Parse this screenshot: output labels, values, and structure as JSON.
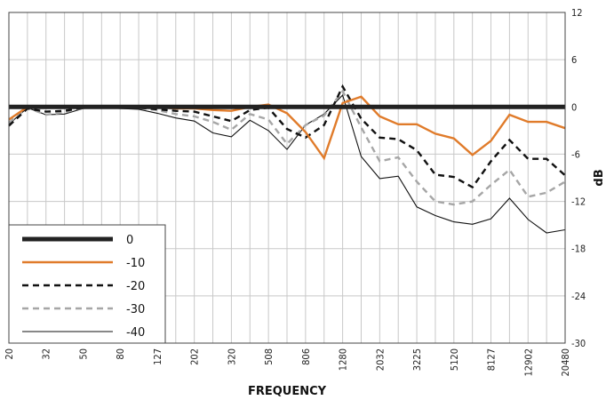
{
  "chart_data": {
    "type": "line",
    "xlabel": "FREQUENCY",
    "ylabel": "dB",
    "x_tick_labels": [
      "20",
      "32",
      "50",
      "80",
      "127",
      "202",
      "320",
      "508",
      "806",
      "1280",
      "2032",
      "3225",
      "5120",
      "8127",
      "12902",
      "20480"
    ],
    "y_ticks": [
      -30,
      -24,
      -18,
      -12,
      -6,
      0,
      6,
      12
    ],
    "ylim": [
      -30,
      12
    ],
    "x_points_per_label": 2,
    "y_axis_side": "right",
    "grid": true,
    "legend_placement": "bottom-left",
    "series": [
      {
        "name": "0",
        "color": "#222222",
        "dash": "solid",
        "weight": "thick",
        "values": [
          0,
          0,
          0,
          0,
          0,
          0,
          0,
          0,
          0,
          0,
          0,
          0,
          0,
          0,
          0,
          0,
          0,
          0,
          0,
          0,
          0,
          0,
          0,
          0,
          0,
          0,
          0,
          0,
          0,
          0,
          0
        ]
      },
      {
        "name": "-10",
        "color": "#e07b2a",
        "dash": "solid",
        "weight": "medium",
        "values": [
          -1.6,
          0,
          0,
          0,
          0,
          0.1,
          0.1,
          0,
          0,
          -0.2,
          -0.2,
          -0.4,
          -0.5,
          0,
          0.3,
          -0.8,
          -3.2,
          -6.5,
          0.5,
          1.3,
          -1.2,
          -2.2,
          -2.2,
          -3.4,
          -4,
          -6.1,
          -4.3,
          -1,
          -1.9,
          -1.9,
          -2.7
        ]
      },
      {
        "name": "-20",
        "color": "#111111",
        "dash": "dashed",
        "weight": "medium",
        "values": [
          -2.4,
          -0.2,
          -0.6,
          -0.5,
          -0.1,
          0,
          0,
          -0.1,
          -0.3,
          -0.5,
          -0.6,
          -1.2,
          -1.8,
          -0.4,
          -0.1,
          -2.8,
          -3.9,
          -2.3,
          2.6,
          -1.5,
          -3.9,
          -4.1,
          -5.5,
          -8.6,
          -8.9,
          -10.2,
          -6.9,
          -4.2,
          -6.6,
          -6.6,
          -8.7
        ]
      },
      {
        "name": "-30",
        "color": "#a6a6a6",
        "dash": "dashed",
        "weight": "medium",
        "values": [
          -2,
          -0.1,
          -1,
          -0.7,
          -0.1,
          0.1,
          0.1,
          -0.1,
          -0.4,
          -0.9,
          -1.2,
          -1.9,
          -2.9,
          -0.9,
          -1.6,
          -4.7,
          -2.3,
          -1.1,
          2,
          -2.6,
          -6.9,
          -6.4,
          -9.5,
          -12,
          -12.4,
          -12,
          -9.9,
          -8,
          -11.4,
          -10.9,
          -9.5
        ]
      },
      {
        "name": "-40",
        "color": "#111111",
        "dash": "solid",
        "weight": "thin",
        "values": [
          -2.2,
          -0.1,
          -1,
          -0.9,
          -0.2,
          -0.1,
          -0.2,
          -0.3,
          -0.8,
          -1.4,
          -1.8,
          -3.3,
          -3.8,
          -1.7,
          -3,
          -5.4,
          -2.3,
          -0.9,
          1.5,
          -6.3,
          -9.1,
          -8.8,
          -12.7,
          -13.8,
          -14.6,
          -14.9,
          -14.2,
          -11.6,
          -14.3,
          -16,
          -15.6
        ]
      }
    ]
  }
}
